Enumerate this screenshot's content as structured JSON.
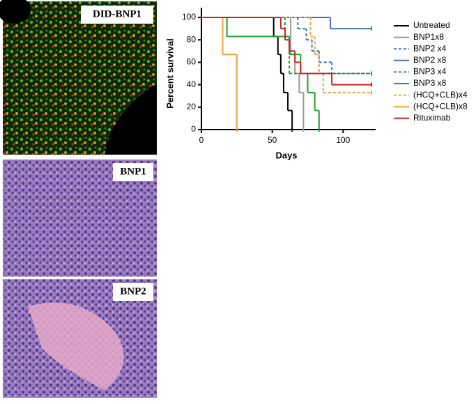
{
  "image_labels": [
    "DID-BNP1",
    "BNP1",
    "BNP2"
  ],
  "chart_data": {
    "type": "survival",
    "xlabel": "Days",
    "ylabel": "Percent survival",
    "xlim": [
      0,
      120
    ],
    "ylim": [
      0,
      100
    ],
    "xticks": [
      0,
      50,
      100
    ],
    "yticks": [
      0,
      20,
      40,
      60,
      80,
      100
    ],
    "series": [
      {
        "name": "Untreated",
        "color": "#000000",
        "style": "solid",
        "x": [
          0,
          51,
          54,
          56,
          58,
          61,
          64
        ],
        "values": [
          100,
          83,
          67,
          50,
          33,
          17,
          0
        ]
      },
      {
        "name": "BNP1x8",
        "color": "#999999",
        "style": "solid",
        "x": [
          0,
          63,
          66,
          69,
          72
        ],
        "values": [
          100,
          67,
          50,
          33,
          0
        ]
      },
      {
        "name": "BNP2 x4",
        "color": "#3a6fc4",
        "style": "dashed",
        "x": [
          0,
          68,
          74,
          78,
          83,
          92,
          120
        ],
        "values": [
          100,
          90,
          80,
          70,
          60,
          50,
          50
        ]
      },
      {
        "name": "BNP2 x8",
        "color": "#4a74b8",
        "style": "solid",
        "x": [
          0,
          91,
          120
        ],
        "values": [
          100,
          90,
          90
        ]
      },
      {
        "name": "BNP3 x4",
        "color": "#1fa02a",
        "style": "dashed",
        "x": [
          0,
          59,
          62,
          120
        ],
        "values": [
          100,
          83,
          50,
          50
        ]
      },
      {
        "name": "BNP3 x8",
        "color": "#1fa02a",
        "style": "solid",
        "x": [
          0,
          18,
          62,
          70,
          75,
          80,
          83
        ],
        "values": [
          100,
          83,
          67,
          50,
          33,
          17,
          0
        ]
      },
      {
        "name": "(HCQ+CLB)x4",
        "color": "#f0a040",
        "style": "dashed",
        "x": [
          0,
          77,
          80,
          83,
          86,
          120
        ],
        "values": [
          100,
          83,
          67,
          50,
          33,
          33
        ]
      },
      {
        "name": "(HCQ+CLB)x8",
        "color": "#f0a040",
        "style": "solid",
        "x": [
          0,
          15,
          25
        ],
        "values": [
          100,
          67,
          0
        ]
      },
      {
        "name": "Rituximab",
        "color": "#d0202a",
        "style": "solid",
        "x": [
          0,
          56,
          59,
          62,
          66,
          70,
          92,
          120
        ],
        "values": [
          100,
          90,
          80,
          70,
          60,
          50,
          40,
          40
        ]
      }
    ]
  }
}
